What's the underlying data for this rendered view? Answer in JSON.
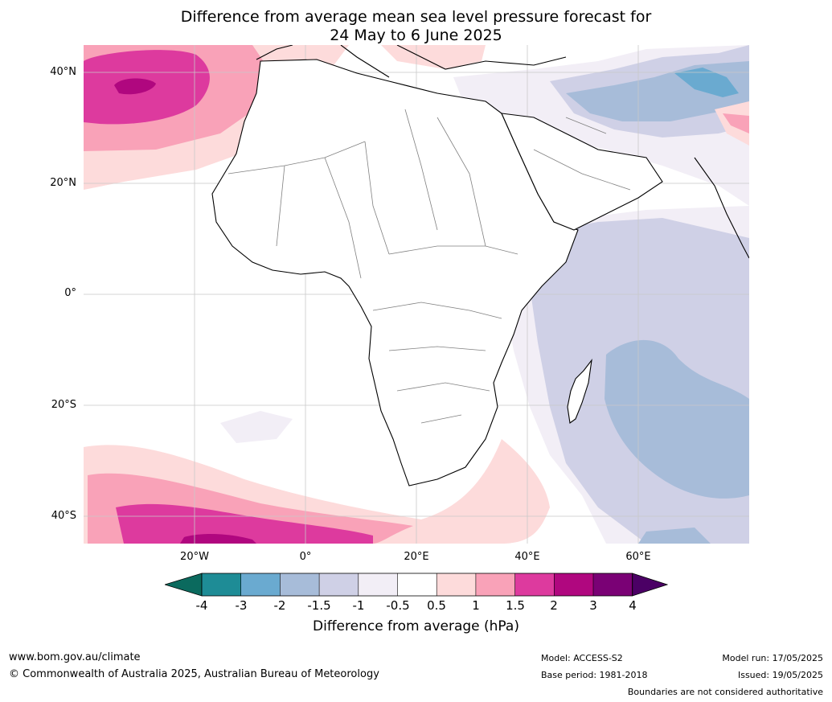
{
  "title": {
    "line1": "Difference from average mean sea level pressure forecast for",
    "line2": "24 May to 6 June 2025"
  },
  "map": {
    "region": "Africa",
    "lat_labels": [
      "40°N",
      "20°N",
      "0°",
      "20°S",
      "40°S"
    ],
    "lon_labels": [
      "20°W",
      "0°",
      "20°E",
      "40°E",
      "60°E"
    ],
    "colors": {
      "ocean_neutral": "#ffffff",
      "land_fill": "#ffffff",
      "coastline": "#000000",
      "borders": "#808080",
      "gridlines": "#c8c8c8"
    }
  },
  "colorbar": {
    "ticks": [
      "-4",
      "-3",
      "-2",
      "-1.5",
      "-1",
      "-0.5",
      "0.5",
      "1",
      "1.5",
      "2",
      "3",
      "4"
    ],
    "label": "Difference from average (hPa)",
    "colors": {
      "below_min": "#0b6a5e",
      "m4_m3": "#1e8c96",
      "m3_m2": "#6aaad0",
      "m2_m15": "#a7bcd9",
      "m15_m1": "#cfd0e6",
      "m1_m05": "#f2eef6",
      "m05_05": "#ffffff",
      "p05_1": "#fddbdb",
      "p1_15": "#f9a2b8",
      "p15_2": "#dd3a9e",
      "p2_3": "#b0077f",
      "p3_4": "#7a0175",
      "above_max": "#4b0065"
    }
  },
  "footer": {
    "url": "www.bom.gov.au/climate",
    "copyright": "© Commonwealth of Australia 2025, Australian Bureau of Meteorology",
    "model": "Model: ACCESS-S2",
    "base_period": "Base period: 1981-2018",
    "model_run": "Model run: 17/05/2025",
    "issued": "Issued: 19/05/2025",
    "disclaimer": "Boundaries are not considered authoritative"
  }
}
